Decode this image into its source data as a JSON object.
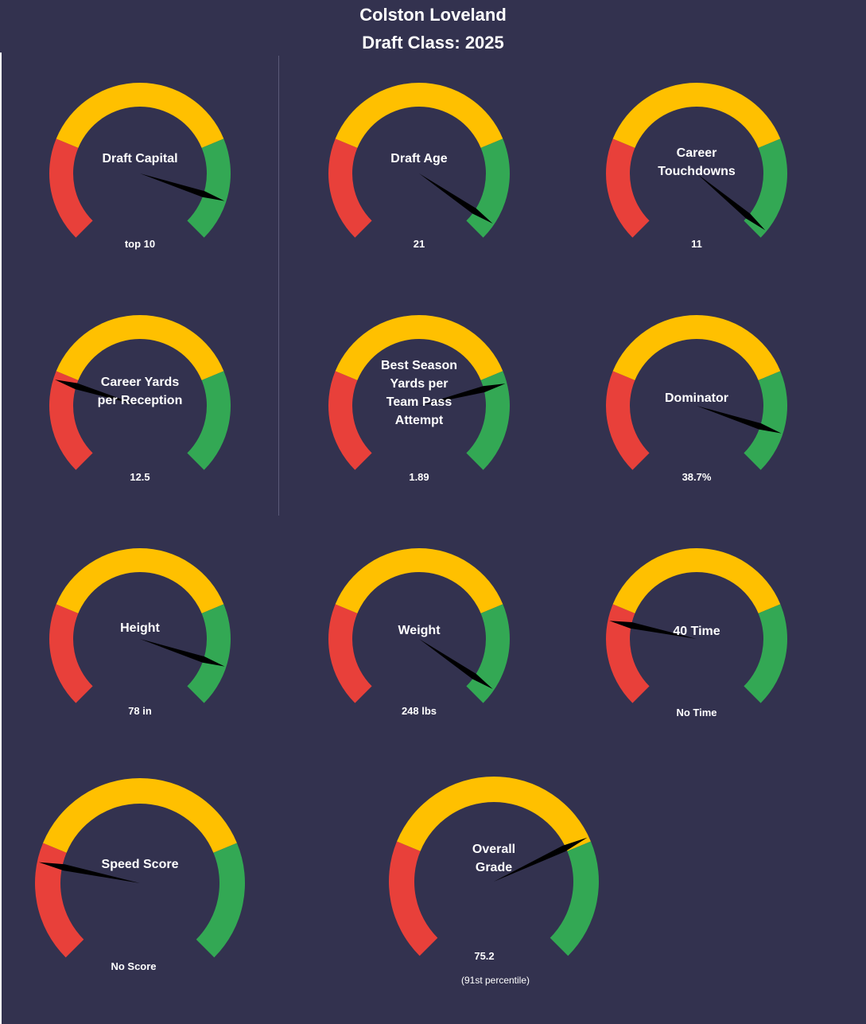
{
  "header": {
    "player_name": "Colston Loveland",
    "draft_class": "Draft Class: 2025"
  },
  "colors": {
    "background": "#33324f",
    "zone_low": "#e8403a",
    "zone_mid": "#ffc000",
    "zone_high": "#33a854",
    "needle": "#000000",
    "text": "#ffffff"
  },
  "gauges": [
    {
      "label_lines": [
        "Draft Capital"
      ],
      "value": "top 10",
      "needle_fraction": 0.9
    },
    {
      "label_lines": [
        "Draft Age"
      ],
      "value": "21",
      "needle_fraction": 0.96
    },
    {
      "label_lines": [
        "Career",
        "Touchdowns"
      ],
      "value": "11",
      "needle_fraction": 0.98
    },
    {
      "label_lines": [
        "Career Yards",
        "per Reception"
      ],
      "value": "12.5",
      "needle_fraction": 0.23
    },
    {
      "label_lines": [
        "Best Season",
        "Yards per",
        "Team Pass",
        "Attempt"
      ],
      "value": "1.89",
      "needle_fraction": 0.78
    },
    {
      "label_lines": [
        "Dominator"
      ],
      "value": "38.7%",
      "needle_fraction": 0.9
    },
    {
      "label_lines": [
        "Height"
      ],
      "value": "78 in",
      "needle_fraction": 0.9
    },
    {
      "label_lines": [
        "Weight"
      ],
      "value": "248 lbs",
      "needle_fraction": 0.96
    },
    {
      "label_lines": [
        "40 Time"
      ],
      "value": "No Time",
      "needle_fraction": 0.21
    },
    {
      "label_lines": [
        "Speed Score"
      ],
      "value": "No Score",
      "needle_fraction": 0.21
    },
    {
      "label_lines": [
        "Overall",
        "Grade"
      ],
      "value": "75.2",
      "sub": "(91st percentile)",
      "needle_fraction": 0.74
    }
  ]
}
